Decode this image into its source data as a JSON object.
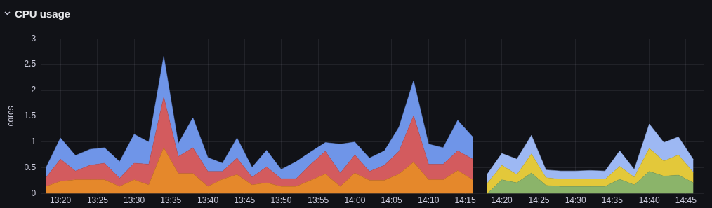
{
  "chart_data": {
    "type": "area",
    "title": "CPU usage",
    "ylabel": "cores",
    "stacked": true,
    "grid": true,
    "legend": false,
    "marker": "none",
    "xlim": [
      13.29,
      14.79
    ],
    "xticks": [
      {
        "value": 13.333,
        "label": "13:20"
      },
      {
        "value": 13.417,
        "label": "13:25"
      },
      {
        "value": 13.5,
        "label": "13:30"
      },
      {
        "value": 13.583,
        "label": "13:35"
      },
      {
        "value": 13.667,
        "label": "13:40"
      },
      {
        "value": 13.75,
        "label": "13:45"
      },
      {
        "value": 13.833,
        "label": "13:50"
      },
      {
        "value": 13.917,
        "label": "13:55"
      },
      {
        "value": 14,
        "label": "14:00"
      },
      {
        "value": 14.083,
        "label": "14:05"
      },
      {
        "value": 14.167,
        "label": "14:10"
      },
      {
        "value": 14.25,
        "label": "14:15"
      },
      {
        "value": 14.333,
        "label": "14:20"
      },
      {
        "value": 14.417,
        "label": "14:25"
      },
      {
        "value": 14.5,
        "label": "14:30"
      },
      {
        "value": 14.583,
        "label": "14:35"
      },
      {
        "value": 14.667,
        "label": "14:40"
      },
      {
        "value": 14.75,
        "label": "14:45"
      }
    ],
    "ylim": [
      0,
      3
    ],
    "yticks": [
      0,
      0.5,
      1,
      1.5,
      2,
      2.5,
      3
    ],
    "x": [
      13.3,
      13.333,
      13.367,
      13.4,
      13.433,
      13.467,
      13.5,
      13.533,
      13.567,
      13.6,
      13.633,
      13.667,
      13.7,
      13.733,
      13.767,
      13.8,
      13.833,
      13.867,
      13.9,
      13.933,
      13.967,
      14,
      14.033,
      14.067,
      14.1,
      14.133,
      14.167,
      14.2,
      14.233,
      14.267,
      14.3,
      14.333,
      14.367,
      14.4,
      14.433,
      14.467,
      14.5,
      14.533,
      14.567,
      14.6,
      14.633,
      14.667,
      14.7,
      14.733,
      14.767
    ],
    "series": [
      {
        "color": "#e5882b",
        "values": [
          0.14,
          0.24,
          0.27,
          0.27,
          0.27,
          0.14,
          0.27,
          0.17,
          0.89,
          0.39,
          0.39,
          0.14,
          0.28,
          0.37,
          0.17,
          0.21,
          0.14,
          0.14,
          0.26,
          0.38,
          0.14,
          0.4,
          0.26,
          0.26,
          0.38,
          0.61,
          0.27,
          0.27,
          0.45,
          0.27,
          null,
          null,
          null,
          null,
          null,
          null,
          null,
          null,
          null,
          null,
          null,
          null,
          null,
          null,
          null
        ]
      },
      {
        "color": "#d35b5e",
        "values": [
          0.17,
          0.43,
          0.17,
          0.28,
          0.32,
          0.16,
          0.32,
          0.4,
          0.98,
          0.33,
          0.5,
          0.29,
          0.15,
          0.32,
          0.15,
          0.31,
          0.15,
          0.15,
          0.31,
          0.44,
          0.26,
          0.35,
          0.17,
          0.29,
          0.44,
          0.9,
          0.3,
          0.3,
          0.38,
          0.4,
          null,
          null,
          null,
          null,
          null,
          null,
          null,
          null,
          null,
          null,
          null,
          null,
          null,
          null,
          null
        ]
      },
      {
        "color": "#6f95e8",
        "values": [
          0.19,
          0.41,
          0.3,
          0.31,
          0.3,
          0.32,
          0.56,
          0.43,
          0.79,
          0.25,
          0.58,
          0.27,
          0.16,
          0.39,
          0.19,
          0.32,
          0.18,
          0.33,
          0.24,
          0.17,
          0.56,
          0.25,
          0.26,
          0.28,
          0.47,
          0.68,
          0.39,
          0.32,
          0.59,
          0.43,
          null,
          null,
          null,
          null,
          null,
          null,
          null,
          null,
          null,
          null,
          null,
          null,
          null,
          null,
          null
        ]
      },
      {
        "color": "#8bb46a",
        "values": [
          null,
          null,
          null,
          null,
          null,
          null,
          null,
          null,
          null,
          null,
          null,
          null,
          null,
          null,
          null,
          null,
          null,
          null,
          null,
          null,
          null,
          null,
          null,
          null,
          null,
          null,
          null,
          null,
          null,
          null,
          0,
          0.27,
          0.21,
          0.4,
          0.16,
          0.14,
          0.14,
          0.14,
          0.14,
          0.28,
          0.17,
          0.43,
          0.34,
          0.36,
          0.21
        ]
      },
      {
        "color": "#e3c83a",
        "values": [
          null,
          null,
          null,
          null,
          null,
          null,
          null,
          null,
          null,
          null,
          null,
          null,
          null,
          null,
          null,
          null,
          null,
          null,
          null,
          null,
          null,
          null,
          null,
          null,
          null,
          null,
          null,
          null,
          null,
          null,
          0.2,
          0.28,
          0.16,
          0.37,
          0.15,
          0.14,
          0.14,
          0.14,
          0.14,
          0.25,
          0.15,
          0.45,
          0.29,
          0.39,
          0.2
        ]
      },
      {
        "color": "#9db8f3",
        "values": [
          null,
          null,
          null,
          null,
          null,
          null,
          null,
          null,
          null,
          null,
          null,
          null,
          null,
          null,
          null,
          null,
          null,
          null,
          null,
          null,
          null,
          null,
          null,
          null,
          null,
          null,
          null,
          null,
          null,
          null,
          0.18,
          0.23,
          0.3,
          0.36,
          0.15,
          0.16,
          0.16,
          0.17,
          0.16,
          0.3,
          0.15,
          0.47,
          0.36,
          0.35,
          0.25
        ]
      }
    ]
  }
}
